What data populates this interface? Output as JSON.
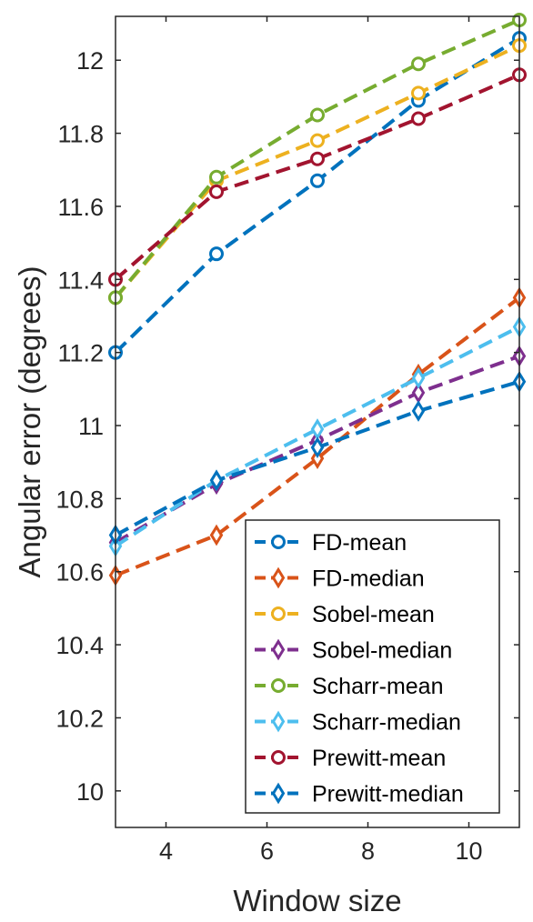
{
  "chart_data": {
    "type": "line",
    "title": "",
    "xlabel": "Window size",
    "ylabel": "Angular error (degrees)",
    "xlim": [
      3,
      11
    ],
    "ylim": [
      9.9,
      12.12
    ],
    "x": [
      3,
      5,
      7,
      9,
      11
    ],
    "xticks": [
      4,
      6,
      8,
      10
    ],
    "yticks": [
      10,
      10.2,
      10.4,
      10.6,
      10.8,
      11,
      11.2,
      11.4,
      11.6,
      11.8,
      12
    ],
    "grid": false,
    "legend_position": "bottom-right",
    "series": [
      {
        "name": "FD-mean",
        "color": "#0072BD",
        "marker": "circle",
        "values": [
          11.2,
          11.47,
          11.67,
          11.89,
          12.06
        ]
      },
      {
        "name": "FD-median",
        "color": "#D95319",
        "marker": "diamond",
        "values": [
          10.59,
          10.7,
          10.91,
          11.14,
          11.35
        ]
      },
      {
        "name": "Sobel-mean",
        "color": "#EDB120",
        "marker": "circle",
        "values": [
          11.35,
          11.67,
          11.78,
          11.91,
          12.04
        ]
      },
      {
        "name": "Sobel-median",
        "color": "#7E2F8E",
        "marker": "diamond",
        "values": [
          10.68,
          10.84,
          10.96,
          11.09,
          11.19
        ]
      },
      {
        "name": "Scharr-mean",
        "color": "#77AC30",
        "marker": "circle",
        "values": [
          11.35,
          11.68,
          11.85,
          11.99,
          12.11
        ]
      },
      {
        "name": "Scharr-median",
        "color": "#4DBEEE",
        "marker": "diamond",
        "values": [
          10.67,
          10.85,
          10.99,
          11.13,
          11.27
        ]
      },
      {
        "name": "Prewitt-mean",
        "color": "#A2142F",
        "marker": "circle",
        "values": [
          11.4,
          11.64,
          11.73,
          11.84,
          11.96
        ]
      },
      {
        "name": "Prewitt-median",
        "color": "#0072BD",
        "marker": "diamond",
        "values": [
          10.7,
          10.85,
          10.94,
          11.04,
          11.12
        ]
      }
    ]
  }
}
